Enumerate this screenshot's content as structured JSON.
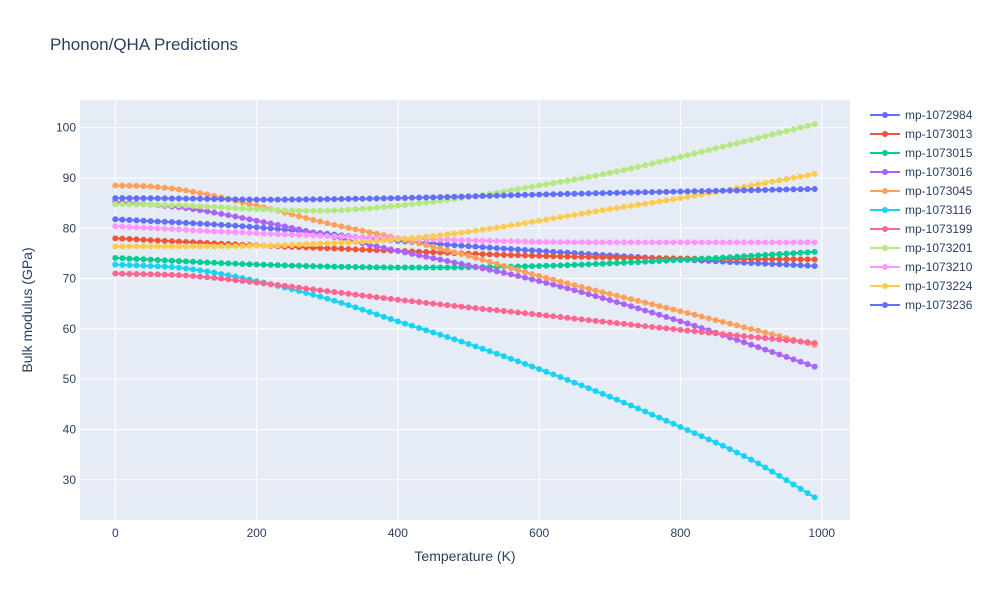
{
  "chart_data": {
    "type": "line",
    "title": "Phonon/QHA Predictions",
    "xlabel": "Temperature (K)",
    "ylabel": "Bulk modulus (GPa)",
    "xlim": [
      -50,
      1040
    ],
    "ylim": [
      22,
      105.5
    ],
    "xticks": [
      0,
      200,
      400,
      600,
      800,
      1000
    ],
    "yticks": [
      30,
      40,
      50,
      60,
      70,
      80,
      90,
      100
    ],
    "grid": true,
    "legend_position": "right",
    "x_start": 0,
    "x_end": 990,
    "x_step": 10,
    "series": [
      {
        "name": "mp-1072984",
        "color": "#636efa",
        "anchors": [
          [
            0,
            81.8
          ],
          [
            200,
            80.2
          ],
          [
            400,
            77.5
          ],
          [
            600,
            75.5
          ],
          [
            800,
            73.8
          ],
          [
            990,
            72.5
          ]
        ]
      },
      {
        "name": "mp-1073013",
        "color": "#ef553b",
        "anchors": [
          [
            0,
            78.0
          ],
          [
            200,
            76.6
          ],
          [
            400,
            75.5
          ],
          [
            600,
            74.5
          ],
          [
            800,
            74.0
          ],
          [
            990,
            73.8
          ]
        ]
      },
      {
        "name": "mp-1073015",
        "color": "#00cc96",
        "anchors": [
          [
            0,
            74.1
          ],
          [
            200,
            72.8
          ],
          [
            400,
            72.2
          ],
          [
            600,
            72.5
          ],
          [
            800,
            73.7
          ],
          [
            990,
            75.3
          ]
        ]
      },
      {
        "name": "mp-1073016",
        "color": "#ab63fa",
        "anchors": [
          [
            0,
            85.2
          ],
          [
            100,
            84.0
          ],
          [
            200,
            81.5
          ],
          [
            400,
            75.5
          ],
          [
            600,
            69.5
          ],
          [
            800,
            61.5
          ],
          [
            990,
            52.5
          ]
        ]
      },
      {
        "name": "mp-1073045",
        "color": "#ffa15a",
        "anchors": [
          [
            0,
            88.5
          ],
          [
            50,
            88.3
          ],
          [
            100,
            87.5
          ],
          [
            200,
            84.5
          ],
          [
            300,
            81.0
          ],
          [
            400,
            78.0
          ],
          [
            500,
            74.5
          ],
          [
            600,
            70.5
          ],
          [
            800,
            63.5
          ],
          [
            990,
            56.8
          ]
        ]
      },
      {
        "name": "mp-1073116",
        "color": "#19d3f3",
        "anchors": [
          [
            0,
            72.8
          ],
          [
            100,
            72.0
          ],
          [
            200,
            69.5
          ],
          [
            300,
            66.0
          ],
          [
            400,
            61.5
          ],
          [
            500,
            57.0
          ],
          [
            600,
            52.0
          ],
          [
            700,
            46.5
          ],
          [
            800,
            40.5
          ],
          [
            900,
            34.0
          ],
          [
            990,
            26.5
          ]
        ]
      },
      {
        "name": "mp-1073199",
        "color": "#ff6692",
        "anchors": [
          [
            0,
            71.0
          ],
          [
            100,
            70.6
          ],
          [
            200,
            69.2
          ],
          [
            300,
            67.5
          ],
          [
            400,
            65.8
          ],
          [
            600,
            62.8
          ],
          [
            800,
            59.8
          ],
          [
            990,
            57.2
          ]
        ]
      },
      {
        "name": "mp-1073201",
        "color": "#b6e880",
        "anchors": [
          [
            0,
            84.8
          ],
          [
            100,
            84.5
          ],
          [
            200,
            83.8
          ],
          [
            300,
            83.5
          ],
          [
            400,
            84.5
          ],
          [
            500,
            86.2
          ],
          [
            600,
            88.5
          ],
          [
            700,
            91.0
          ],
          [
            800,
            94.2
          ],
          [
            990,
            100.7
          ]
        ]
      },
      {
        "name": "mp-1073210",
        "color": "#ff97ff",
        "anchors": [
          [
            0,
            80.4
          ],
          [
            200,
            79.0
          ],
          [
            400,
            78.0
          ],
          [
            600,
            77.3
          ],
          [
            800,
            77.2
          ],
          [
            990,
            77.2
          ]
        ]
      },
      {
        "name": "mp-1073224",
        "color": "#fecb52",
        "anchors": [
          [
            0,
            76.4
          ],
          [
            200,
            76.5
          ],
          [
            300,
            77.0
          ],
          [
            400,
            77.8
          ],
          [
            500,
            79.3
          ],
          [
            600,
            81.5
          ],
          [
            700,
            83.8
          ],
          [
            800,
            86.0
          ],
          [
            990,
            90.8
          ]
        ]
      },
      {
        "name": "mp-1073236",
        "color": "#636efa",
        "anchors": [
          [
            0,
            86.0
          ],
          [
            100,
            85.9
          ],
          [
            200,
            85.7
          ],
          [
            400,
            86.0
          ],
          [
            600,
            86.7
          ],
          [
            800,
            87.3
          ],
          [
            990,
            87.8
          ]
        ]
      }
    ]
  }
}
